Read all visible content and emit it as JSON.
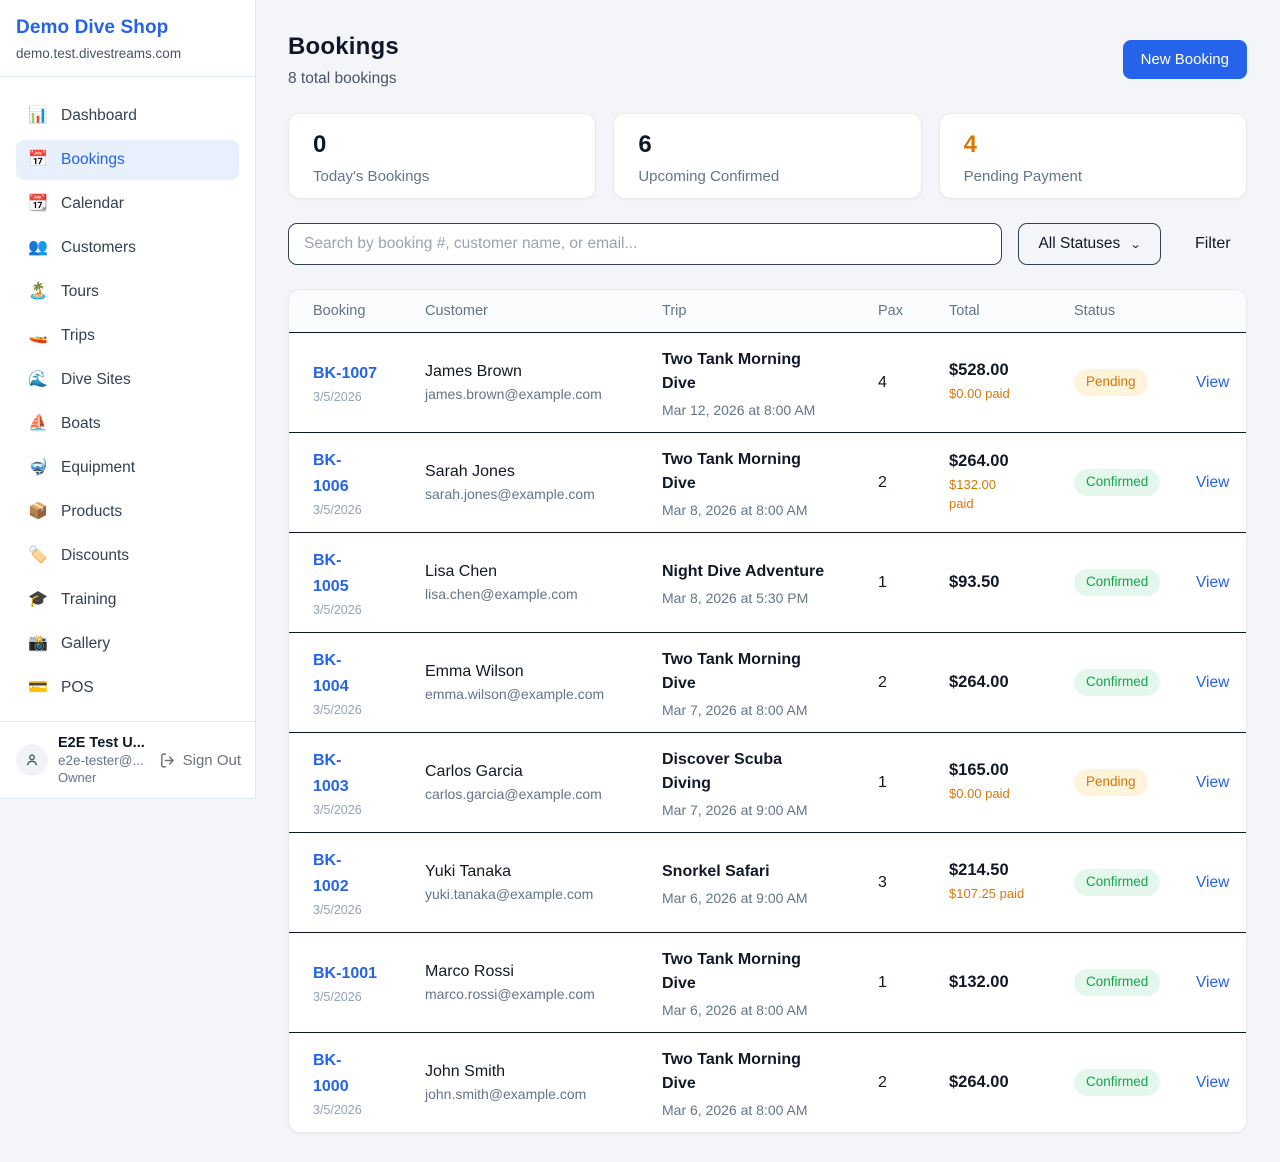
{
  "colors": {
    "accent_blue": "#2563eb",
    "brand_blue": "#2563eb",
    "pending_text": "#d97706",
    "pending_bg": "#fdf4da",
    "confirmed_text": "#16a34a",
    "confirmed_bg": "#e4f7ec",
    "paid_orange": "#d97706"
  },
  "sidebar": {
    "brand": {
      "name": "Demo Dive Shop",
      "domain": "demo.test.divestreams.com"
    },
    "items": [
      {
        "label": "Dashboard",
        "icon": "bar-chart",
        "glyph": "📊",
        "active": false
      },
      {
        "label": "Bookings",
        "icon": "calendar",
        "glyph": "📅",
        "active": true
      },
      {
        "label": "Calendar",
        "icon": "tear-off-calendar",
        "glyph": "📆",
        "active": false
      },
      {
        "label": "Customers",
        "icon": "people",
        "glyph": "👥",
        "active": false
      },
      {
        "label": "Tours",
        "icon": "desert-island",
        "glyph": "🏝️",
        "active": false
      },
      {
        "label": "Trips",
        "icon": "speedboat",
        "glyph": "🚤",
        "active": false
      },
      {
        "label": "Dive Sites",
        "icon": "wave",
        "glyph": "🌊",
        "active": false
      },
      {
        "label": "Boats",
        "icon": "sailboat",
        "glyph": "⛵",
        "active": false
      },
      {
        "label": "Equipment",
        "icon": "diving-mask",
        "glyph": "🤿",
        "active": false
      },
      {
        "label": "Products",
        "icon": "package",
        "glyph": "📦",
        "active": false
      },
      {
        "label": "Discounts",
        "icon": "tag",
        "glyph": "🏷️",
        "active": false
      },
      {
        "label": "Training",
        "icon": "graduation-cap",
        "glyph": "🎓",
        "active": false
      },
      {
        "label": "Gallery",
        "icon": "camera-flash",
        "glyph": "📸",
        "active": false
      },
      {
        "label": "POS",
        "icon": "credit-card",
        "glyph": "💳",
        "active": false
      }
    ],
    "user": {
      "name": "E2E Test U...",
      "email": "e2e-tester@...",
      "role": "Owner",
      "sign_out_label": "Sign Out"
    }
  },
  "header": {
    "title": "Bookings",
    "subtitle": "8 total bookings",
    "new_booking_label": "New Booking"
  },
  "stats": [
    {
      "value": "0",
      "label": "Today's Bookings",
      "color": "#0f172a"
    },
    {
      "value": "6",
      "label": "Upcoming Confirmed",
      "color": "#0f172a"
    },
    {
      "value": "4",
      "label": "Pending Payment",
      "color": "#d97706"
    }
  ],
  "filters": {
    "search_placeholder": "Search by booking #, customer name, or email...",
    "status_selected": "All Statuses",
    "filter_label": "Filter"
  },
  "table": {
    "headers": [
      "Booking",
      "Customer",
      "Trip",
      "Pax",
      "Total",
      "Status"
    ],
    "view_label": "View",
    "rows": [
      {
        "id_lines": [
          "BK-1007"
        ],
        "date": "3/5/2026",
        "customer": "James Brown",
        "email": "james.brown@example.com",
        "trip_lines": [
          "Two Tank Morning",
          "Dive"
        ],
        "trip_when": "Mar 12, 2026 at 8:00 AM",
        "pax": "4",
        "total": "$528.00",
        "paid_lines": [
          "$0.00 paid"
        ],
        "status": "Pending",
        "status_type": "pending"
      },
      {
        "id_lines": [
          "BK-",
          "1006"
        ],
        "date": "3/5/2026",
        "customer": "Sarah Jones",
        "email": "sarah.jones@example.com",
        "trip_lines": [
          "Two Tank Morning",
          "Dive"
        ],
        "trip_when": "Mar 8, 2026 at 8:00 AM",
        "pax": "2",
        "total": "$264.00",
        "paid_lines": [
          "$132.00",
          "paid"
        ],
        "status": "Confirmed",
        "status_type": "confirmed"
      },
      {
        "id_lines": [
          "BK-",
          "1005"
        ],
        "date": "3/5/2026",
        "customer": "Lisa Chen",
        "email": "lisa.chen@example.com",
        "trip_lines": [
          "Night Dive Adventure"
        ],
        "trip_when": "Mar 8, 2026 at 5:30 PM",
        "pax": "1",
        "total": "$93.50",
        "paid_lines": [],
        "status": "Confirmed",
        "status_type": "confirmed"
      },
      {
        "id_lines": [
          "BK-",
          "1004"
        ],
        "date": "3/5/2026",
        "customer": "Emma Wilson",
        "email": "emma.wilson@example.com",
        "trip_lines": [
          "Two Tank Morning",
          "Dive"
        ],
        "trip_when": "Mar 7, 2026 at 8:00 AM",
        "pax": "2",
        "total": "$264.00",
        "paid_lines": [],
        "status": "Confirmed",
        "status_type": "confirmed"
      },
      {
        "id_lines": [
          "BK-",
          "1003"
        ],
        "date": "3/5/2026",
        "customer": "Carlos Garcia",
        "email": "carlos.garcia@example.com",
        "trip_lines": [
          "Discover Scuba",
          "Diving"
        ],
        "trip_when": "Mar 7, 2026 at 9:00 AM",
        "pax": "1",
        "total": "$165.00",
        "paid_lines": [
          "$0.00 paid"
        ],
        "status": "Pending",
        "status_type": "pending"
      },
      {
        "id_lines": [
          "BK-",
          "1002"
        ],
        "date": "3/5/2026",
        "customer": "Yuki Tanaka",
        "email": "yuki.tanaka@example.com",
        "trip_lines": [
          "Snorkel Safari"
        ],
        "trip_when": "Mar 6, 2026 at 9:00 AM",
        "pax": "3",
        "total": "$214.50",
        "paid_lines": [
          "$107.25 paid"
        ],
        "status": "Confirmed",
        "status_type": "confirmed"
      },
      {
        "id_lines": [
          "BK-1001"
        ],
        "date": "3/5/2026",
        "customer": "Marco Rossi",
        "email": "marco.rossi@example.com",
        "trip_lines": [
          "Two Tank Morning",
          "Dive"
        ],
        "trip_when": "Mar 6, 2026 at 8:00 AM",
        "pax": "1",
        "total": "$132.00",
        "paid_lines": [],
        "status": "Confirmed",
        "status_type": "confirmed"
      },
      {
        "id_lines": [
          "BK-",
          "1000"
        ],
        "date": "3/5/2026",
        "customer": "John Smith",
        "email": "john.smith@example.com",
        "trip_lines": [
          "Two Tank Morning",
          "Dive"
        ],
        "trip_when": "Mar 6, 2026 at 8:00 AM",
        "pax": "2",
        "total": "$264.00",
        "paid_lines": [],
        "status": "Confirmed",
        "status_type": "confirmed"
      }
    ]
  }
}
